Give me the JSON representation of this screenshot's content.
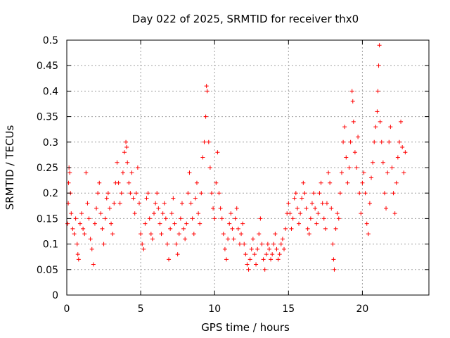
{
  "chart_data": {
    "type": "scatter",
    "title": "Day 022 of 2025, SRMTID for receiver thx0",
    "xlabel": "GPS time / hours",
    "ylabel": "SRMTID / TECUs",
    "xlim": [
      0,
      24.5
    ],
    "ylim": [
      0,
      0.5
    ],
    "xticks": [
      0,
      5,
      10,
      15,
      20
    ],
    "yticks": [
      0,
      0.05,
      0.1,
      0.15,
      0.2,
      0.25,
      0.3,
      0.35,
      0.4,
      0.45,
      0.5
    ],
    "xtick_labels": [
      "0",
      "5",
      "10",
      "15",
      "20"
    ],
    "ytick_labels": [
      "0",
      "0.05",
      "0.1",
      "0.15",
      "0.2",
      "0.25",
      "0.3",
      "0.35",
      "0.4",
      "0.45",
      "0.5"
    ],
    "grid": true,
    "marker": "plus",
    "color": "#ff0000",
    "series": [
      {
        "values": [
          [
            0.05,
            0.14
          ],
          [
            0.1,
            0.18
          ],
          [
            0.12,
            0.22
          ],
          [
            0.15,
            0.25
          ],
          [
            0.2,
            0.24
          ],
          [
            0.25,
            0.2
          ],
          [
            0.3,
            0.16
          ],
          [
            0.4,
            0.13
          ],
          [
            0.5,
            0.12
          ],
          [
            0.6,
            0.15
          ],
          [
            0.7,
            0.1
          ],
          [
            0.75,
            0.08
          ],
          [
            0.8,
            0.07
          ],
          [
            0.9,
            0.14
          ],
          [
            1.0,
            0.16
          ],
          [
            1.1,
            0.13
          ],
          [
            1.2,
            0.12
          ],
          [
            1.3,
            0.24
          ],
          [
            1.4,
            0.18
          ],
          [
            1.5,
            0.15
          ],
          [
            1.6,
            0.11
          ],
          [
            1.7,
            0.09
          ],
          [
            1.8,
            0.06
          ],
          [
            1.9,
            0.14
          ],
          [
            2.0,
            0.17
          ],
          [
            2.1,
            0.2
          ],
          [
            2.2,
            0.22
          ],
          [
            2.3,
            0.16
          ],
          [
            2.4,
            0.13
          ],
          [
            2.5,
            0.1
          ],
          [
            2.6,
            0.15
          ],
          [
            2.7,
            0.19
          ],
          [
            2.8,
            0.2
          ],
          [
            2.9,
            0.17
          ],
          [
            3.0,
            0.14
          ],
          [
            3.1,
            0.12
          ],
          [
            3.2,
            0.18
          ],
          [
            3.3,
            0.22
          ],
          [
            3.4,
            0.26
          ],
          [
            3.5,
            0.22
          ],
          [
            3.6,
            0.18
          ],
          [
            3.7,
            0.2
          ],
          [
            3.8,
            0.24
          ],
          [
            3.9,
            0.28
          ],
          [
            4.0,
            0.3
          ],
          [
            4.05,
            0.29
          ],
          [
            4.1,
            0.26
          ],
          [
            4.2,
            0.22
          ],
          [
            4.3,
            0.2
          ],
          [
            4.4,
            0.24
          ],
          [
            4.5,
            0.19
          ],
          [
            4.6,
            0.16
          ],
          [
            4.7,
            0.2
          ],
          [
            4.8,
            0.25
          ],
          [
            4.9,
            0.18
          ],
          [
            5.0,
            0.12
          ],
          [
            5.1,
            0.1
          ],
          [
            5.2,
            0.09
          ],
          [
            5.3,
            0.14
          ],
          [
            5.4,
            0.19
          ],
          [
            5.5,
            0.2
          ],
          [
            5.6,
            0.15
          ],
          [
            5.7,
            0.12
          ],
          [
            5.8,
            0.11
          ],
          [
            5.9,
            0.16
          ],
          [
            6.0,
            0.18
          ],
          [
            6.1,
            0.2
          ],
          [
            6.2,
            0.17
          ],
          [
            6.3,
            0.14
          ],
          [
            6.4,
            0.12
          ],
          [
            6.5,
            0.16
          ],
          [
            6.6,
            0.18
          ],
          [
            6.7,
            0.15
          ],
          [
            6.8,
            0.1
          ],
          [
            6.9,
            0.07
          ],
          [
            7.0,
            0.13
          ],
          [
            7.1,
            0.16
          ],
          [
            7.2,
            0.19
          ],
          [
            7.3,
            0.14
          ],
          [
            7.4,
            0.1
          ],
          [
            7.5,
            0.08
          ],
          [
            7.6,
            0.12
          ],
          [
            7.7,
            0.15
          ],
          [
            7.8,
            0.18
          ],
          [
            7.9,
            0.13
          ],
          [
            8.0,
            0.11
          ],
          [
            8.1,
            0.14
          ],
          [
            8.2,
            0.2
          ],
          [
            8.3,
            0.24
          ],
          [
            8.4,
            0.18
          ],
          [
            8.5,
            0.15
          ],
          [
            8.6,
            0.12
          ],
          [
            8.7,
            0.19
          ],
          [
            8.8,
            0.22
          ],
          [
            8.9,
            0.16
          ],
          [
            9.0,
            0.14
          ],
          [
            9.1,
            0.2
          ],
          [
            9.2,
            0.27
          ],
          [
            9.3,
            0.3
          ],
          [
            9.4,
            0.35
          ],
          [
            9.45,
            0.41
          ],
          [
            9.5,
            0.4
          ],
          [
            9.6,
            0.3
          ],
          [
            9.7,
            0.25
          ],
          [
            9.8,
            0.2
          ],
          [
            9.9,
            0.17
          ],
          [
            10.0,
            0.15
          ],
          [
            10.1,
            0.22
          ],
          [
            10.2,
            0.28
          ],
          [
            10.3,
            0.2
          ],
          [
            10.4,
            0.17
          ],
          [
            10.5,
            0.15
          ],
          [
            10.6,
            0.12
          ],
          [
            10.7,
            0.09
          ],
          [
            10.8,
            0.07
          ],
          [
            10.9,
            0.11
          ],
          [
            11.0,
            0.14
          ],
          [
            11.1,
            0.16
          ],
          [
            11.2,
            0.13
          ],
          [
            11.3,
            0.11
          ],
          [
            11.4,
            0.15
          ],
          [
            11.5,
            0.17
          ],
          [
            11.6,
            0.13
          ],
          [
            11.7,
            0.1
          ],
          [
            11.8,
            0.12
          ],
          [
            11.9,
            0.14
          ],
          [
            12.0,
            0.1
          ],
          [
            12.1,
            0.08
          ],
          [
            12.2,
            0.06
          ],
          [
            12.3,
            0.05
          ],
          [
            12.4,
            0.07
          ],
          [
            12.5,
            0.09
          ],
          [
            12.6,
            0.11
          ],
          [
            12.7,
            0.08
          ],
          [
            12.8,
            0.06
          ],
          [
            12.9,
            0.09
          ],
          [
            13.0,
            0.12
          ],
          [
            13.1,
            0.15
          ],
          [
            13.2,
            0.1
          ],
          [
            13.3,
            0.07
          ],
          [
            13.4,
            0.05
          ],
          [
            13.5,
            0.08
          ],
          [
            13.6,
            0.1
          ],
          [
            13.7,
            0.09
          ],
          [
            13.8,
            0.07
          ],
          [
            13.9,
            0.08
          ],
          [
            14.0,
            0.1
          ],
          [
            14.1,
            0.12
          ],
          [
            14.2,
            0.09
          ],
          [
            14.3,
            0.07
          ],
          [
            14.4,
            0.08
          ],
          [
            14.5,
            0.1
          ],
          [
            14.6,
            0.11
          ],
          [
            14.7,
            0.09
          ],
          [
            14.8,
            0.13
          ],
          [
            14.9,
            0.16
          ],
          [
            15.0,
            0.18
          ],
          [
            15.1,
            0.16
          ],
          [
            15.2,
            0.13
          ],
          [
            15.3,
            0.15
          ],
          [
            15.4,
            0.19
          ],
          [
            15.5,
            0.2
          ],
          [
            15.6,
            0.17
          ],
          [
            15.7,
            0.14
          ],
          [
            15.8,
            0.16
          ],
          [
            15.9,
            0.19
          ],
          [
            16.0,
            0.22
          ],
          [
            16.1,
            0.2
          ],
          [
            16.2,
            0.17
          ],
          [
            16.3,
            0.13
          ],
          [
            16.4,
            0.12
          ],
          [
            16.5,
            0.15
          ],
          [
            16.6,
            0.18
          ],
          [
            16.7,
            0.2
          ],
          [
            16.8,
            0.17
          ],
          [
            16.9,
            0.14
          ],
          [
            17.0,
            0.16
          ],
          [
            17.1,
            0.2
          ],
          [
            17.2,
            0.22
          ],
          [
            17.3,
            0.18
          ],
          [
            17.4,
            0.15
          ],
          [
            17.5,
            0.13
          ],
          [
            17.6,
            0.18
          ],
          [
            17.7,
            0.24
          ],
          [
            17.8,
            0.22
          ],
          [
            17.9,
            0.17
          ],
          [
            18.0,
            0.1
          ],
          [
            18.05,
            0.07
          ],
          [
            18.1,
            0.05
          ],
          [
            18.2,
            0.13
          ],
          [
            18.3,
            0.16
          ],
          [
            18.4,
            0.15
          ],
          [
            18.5,
            0.2
          ],
          [
            18.6,
            0.24
          ],
          [
            18.7,
            0.3
          ],
          [
            18.8,
            0.33
          ],
          [
            18.9,
            0.27
          ],
          [
            19.0,
            0.22
          ],
          [
            19.1,
            0.25
          ],
          [
            19.2,
            0.3
          ],
          [
            19.3,
            0.4
          ],
          [
            19.35,
            0.38
          ],
          [
            19.4,
            0.34
          ],
          [
            19.5,
            0.28
          ],
          [
            19.6,
            0.25
          ],
          [
            19.7,
            0.31
          ],
          [
            19.8,
            0.2
          ],
          [
            19.9,
            0.16
          ],
          [
            20.0,
            0.22
          ],
          [
            20.1,
            0.24
          ],
          [
            20.2,
            0.2
          ],
          [
            20.3,
            0.14
          ],
          [
            20.4,
            0.12
          ],
          [
            20.5,
            0.18
          ],
          [
            20.6,
            0.23
          ],
          [
            20.7,
            0.26
          ],
          [
            20.8,
            0.3
          ],
          [
            20.9,
            0.33
          ],
          [
            21.0,
            0.36
          ],
          [
            21.05,
            0.4
          ],
          [
            21.1,
            0.45
          ],
          [
            21.15,
            0.49
          ],
          [
            21.2,
            0.34
          ],
          [
            21.3,
            0.3
          ],
          [
            21.4,
            0.26
          ],
          [
            21.5,
            0.2
          ],
          [
            21.6,
            0.17
          ],
          [
            21.7,
            0.24
          ],
          [
            21.8,
            0.3
          ],
          [
            21.9,
            0.33
          ],
          [
            22.0,
            0.25
          ],
          [
            22.1,
            0.2
          ],
          [
            22.2,
            0.16
          ],
          [
            22.3,
            0.22
          ],
          [
            22.4,
            0.27
          ],
          [
            22.5,
            0.3
          ],
          [
            22.6,
            0.34
          ],
          [
            22.7,
            0.29
          ],
          [
            22.8,
            0.24
          ],
          [
            22.9,
            0.28
          ]
        ]
      }
    ]
  }
}
